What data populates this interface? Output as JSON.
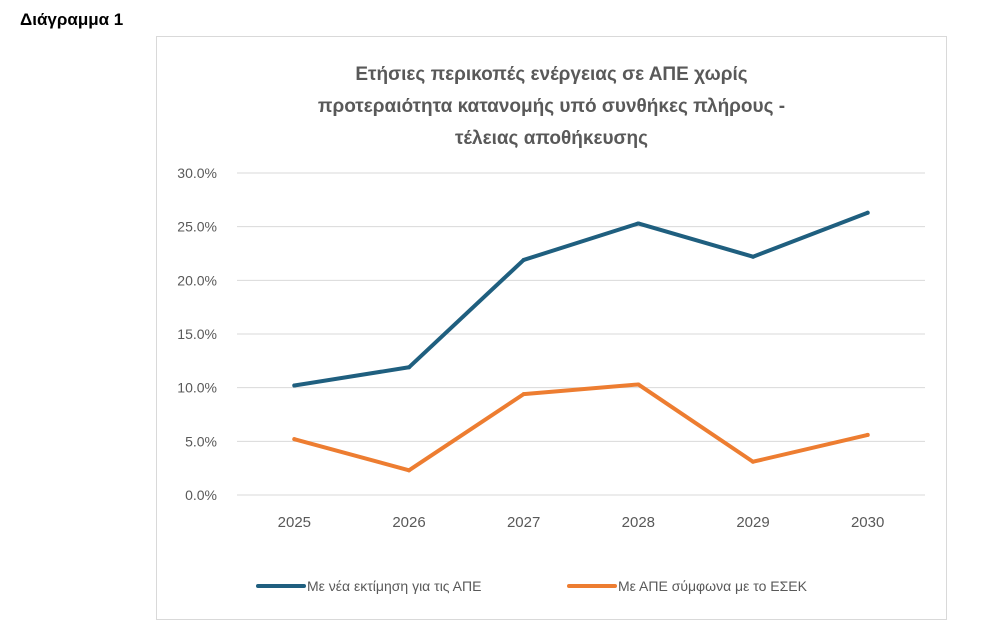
{
  "document": {
    "heading": "Διάγραμμα 1"
  },
  "chart_data": {
    "type": "line",
    "title_lines": [
      "Ετήσιες περικοπές ενέργειας σε ΑΠΕ χωρίς",
      "προτεραιότητα κατανομής υπό συνθήκες πλήρους -",
      "τέλειας αποθήκευσης"
    ],
    "categories": [
      "2025",
      "2026",
      "2027",
      "2028",
      "2029",
      "2030"
    ],
    "y_ticks": [
      "0.0%",
      "5.0%",
      "10.0%",
      "15.0%",
      "20.0%",
      "25.0%",
      "30.0%"
    ],
    "ylim": [
      0,
      30
    ],
    "grid": true,
    "legend_position": "bottom",
    "series": [
      {
        "name": "Με νέα εκτίμηση για τις ΑΠΕ",
        "color": "#1f5f7f",
        "values": [
          10.2,
          11.9,
          21.9,
          25.3,
          22.2,
          26.3
        ]
      },
      {
        "name": "Με ΑΠΕ σύμφωνα με το ΕΣΕΚ",
        "color": "#ed7d31",
        "values": [
          5.2,
          2.3,
          9.4,
          10.3,
          3.1,
          5.6
        ]
      }
    ]
  }
}
